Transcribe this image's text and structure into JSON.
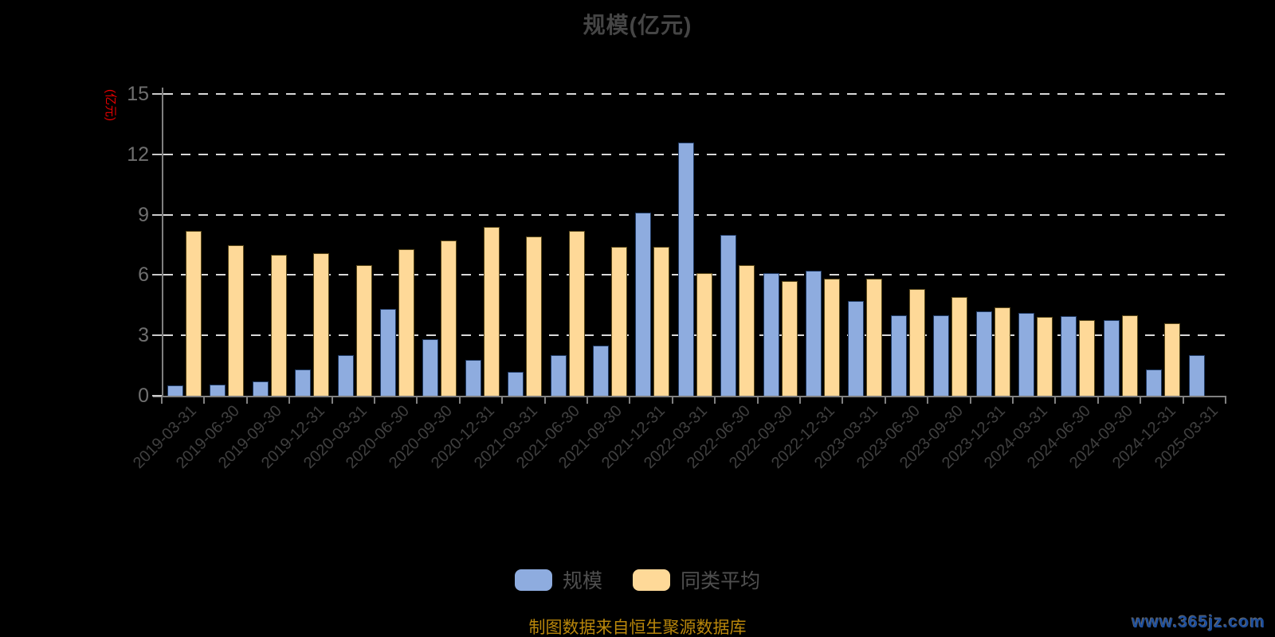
{
  "title": "规模(亿元)",
  "y_axis": {
    "name": "(亿元)"
  },
  "legend": [
    {
      "label": "规模",
      "color": "#8EACDF"
    },
    {
      "label": "同类平均",
      "color": "#FED998"
    }
  ],
  "footer": {
    "source_note": "制图数据来自恒生聚源数据库",
    "watermark": "www.365jz.com"
  },
  "chart_data": {
    "type": "bar",
    "title": "规模(亿元)",
    "ylabel": "(亿元)",
    "ylim": [
      0,
      15
    ],
    "yticks": [
      0,
      3,
      6,
      9,
      12,
      15
    ],
    "grid": "horizontal-dashed-white",
    "legend_position": "bottom",
    "categories": [
      "2019-03-31",
      "2019-06-30",
      "2019-09-30",
      "2019-12-31",
      "2020-03-31",
      "2020-06-30",
      "2020-09-30",
      "2020-12-31",
      "2021-03-31",
      "2021-06-30",
      "2021-09-30",
      "2021-12-31",
      "2022-03-31",
      "2022-06-30",
      "2022-09-30",
      "2022-12-31",
      "2023-03-31",
      "2023-06-30",
      "2023-09-30",
      "2023-12-31",
      "2024-03-31",
      "2024-06-30",
      "2024-09-30",
      "2024-12-31",
      "2025-03-31"
    ],
    "series": [
      {
        "id": "scale",
        "name": "规模",
        "color": "#8EACDF",
        "border_color": "#1f3a63",
        "values": [
          0.5,
          0.55,
          0.7,
          1.3,
          2.0,
          4.3,
          2.8,
          1.8,
          1.2,
          2.0,
          2.5,
          9.1,
          12.6,
          8.0,
          6.1,
          6.2,
          4.7,
          4.0,
          4.0,
          4.2,
          4.1,
          3.95,
          3.75,
          1.3,
          2.0
        ]
      },
      {
        "id": "category-average",
        "name": "同类平均",
        "color": "#FED998",
        "border_color": "#59481a",
        "values": [
          8.2,
          7.5,
          7.0,
          7.1,
          6.5,
          7.3,
          7.7,
          8.4,
          7.9,
          8.2,
          7.4,
          7.4,
          6.1,
          6.5,
          5.7,
          5.8,
          5.8,
          5.3,
          4.9,
          4.4,
          3.9,
          3.75,
          4.0,
          3.6,
          null
        ]
      }
    ]
  }
}
